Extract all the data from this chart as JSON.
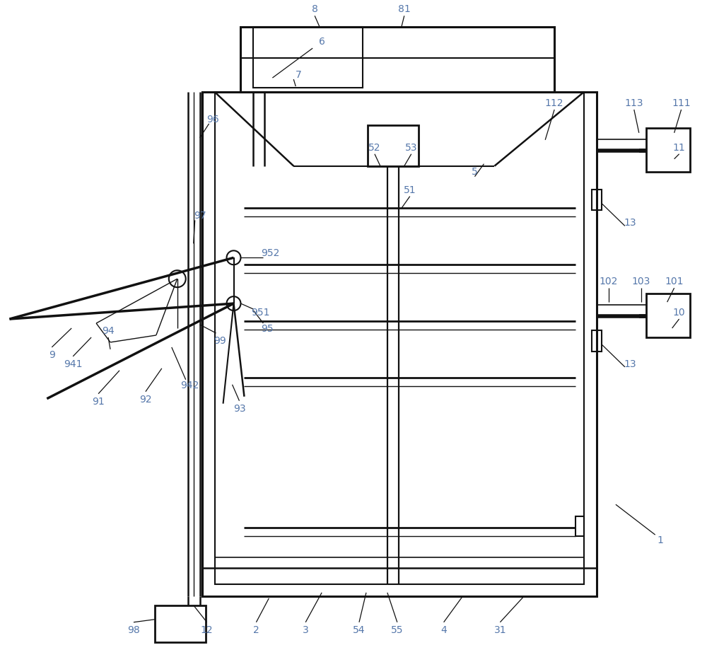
{
  "label_color": "#5577aa",
  "line_color": "#111111",
  "bg_color": "#ffffff",
  "fs": 10
}
